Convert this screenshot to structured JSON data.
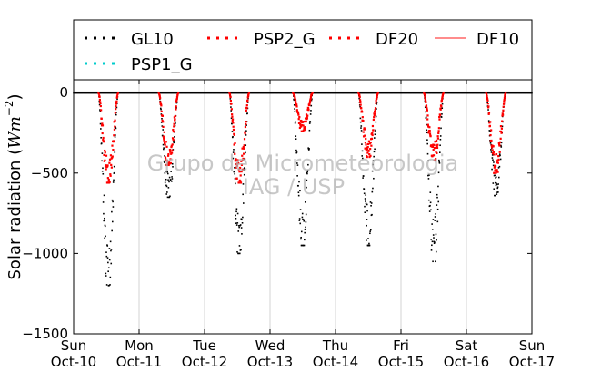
{
  "chart_data": {
    "type": "scatter",
    "ylabel": "Solar radiation (Wm^-2)",
    "ylabel_parts": {
      "text": "Solar radiation (",
      "var": "Wm",
      "exp": "−2",
      "close": ")"
    },
    "ylim": [
      -1500,
      80
    ],
    "yticks": [
      {
        "value": 0,
        "label": "0"
      },
      {
        "value": -500,
        "label": "−500"
      },
      {
        "value": -1000,
        "label": "−1000"
      },
      {
        "value": -1500,
        "label": "−1500"
      }
    ],
    "xlim": [
      0,
      7
    ],
    "xticks": [
      {
        "day": 0,
        "weekday": "Sun",
        "date": "Oct-10"
      },
      {
        "day": 1,
        "weekday": "Mon",
        "date": "Oct-11"
      },
      {
        "day": 2,
        "weekday": "Tue",
        "date": "Oct-12"
      },
      {
        "day": 3,
        "weekday": "Wed",
        "date": "Oct-13"
      },
      {
        "day": 4,
        "weekday": "Thu",
        "date": "Oct-14"
      },
      {
        "day": 5,
        "weekday": "Fri",
        "date": "Oct-15"
      },
      {
        "day": 6,
        "weekday": "Sat",
        "date": "Oct-16"
      },
      {
        "day": 7,
        "weekday": "Sun",
        "date": "Oct-17"
      }
    ],
    "grid": "vertical",
    "legend": {
      "placement": "top",
      "entries": [
        {
          "name": "GL10",
          "color": "#000000",
          "marker": "dots"
        },
        {
          "name": "PSP2_G",
          "color": "#ff0000",
          "marker": "dots"
        },
        {
          "name": "DF20",
          "color": "#ff0000",
          "marker": "dots"
        },
        {
          "name": "DF10",
          "color": "#ff6666",
          "marker": "line"
        },
        {
          "name": "PSP1_G",
          "color": "#00cccc",
          "marker": "dots"
        }
      ]
    },
    "series": [
      {
        "name": "GL10",
        "color": "#000000",
        "daily_peaks": [
          {
            "day": 0,
            "noon": 0.53,
            "min": -1200
          },
          {
            "day": 1,
            "noon": 0.45,
            "min": -650
          },
          {
            "day": 2,
            "noon": 0.53,
            "min": -1000
          },
          {
            "day": 3,
            "noon": 0.5,
            "min": -950
          },
          {
            "day": 4,
            "noon": 0.5,
            "min": -950
          },
          {
            "day": 5,
            "noon": 0.5,
            "min": -1050
          },
          {
            "day": 6,
            "noon": 0.45,
            "min": -640
          }
        ]
      },
      {
        "name": "DF20",
        "color": "#ff0000",
        "daily_peaks": [
          {
            "day": 0,
            "noon": 0.53,
            "min": -560
          },
          {
            "day": 1,
            "noon": 0.45,
            "min": -450
          },
          {
            "day": 2,
            "noon": 0.53,
            "min": -560
          },
          {
            "day": 3,
            "noon": 0.5,
            "min": -240
          },
          {
            "day": 4,
            "noon": 0.5,
            "min": -400
          },
          {
            "day": 5,
            "noon": 0.5,
            "min": -420
          },
          {
            "day": 6,
            "noon": 0.45,
            "min": -500
          }
        ]
      }
    ]
  },
  "watermark": {
    "line1": "Grupo de Micrometeorologia",
    "line2": "IAG / USP"
  }
}
